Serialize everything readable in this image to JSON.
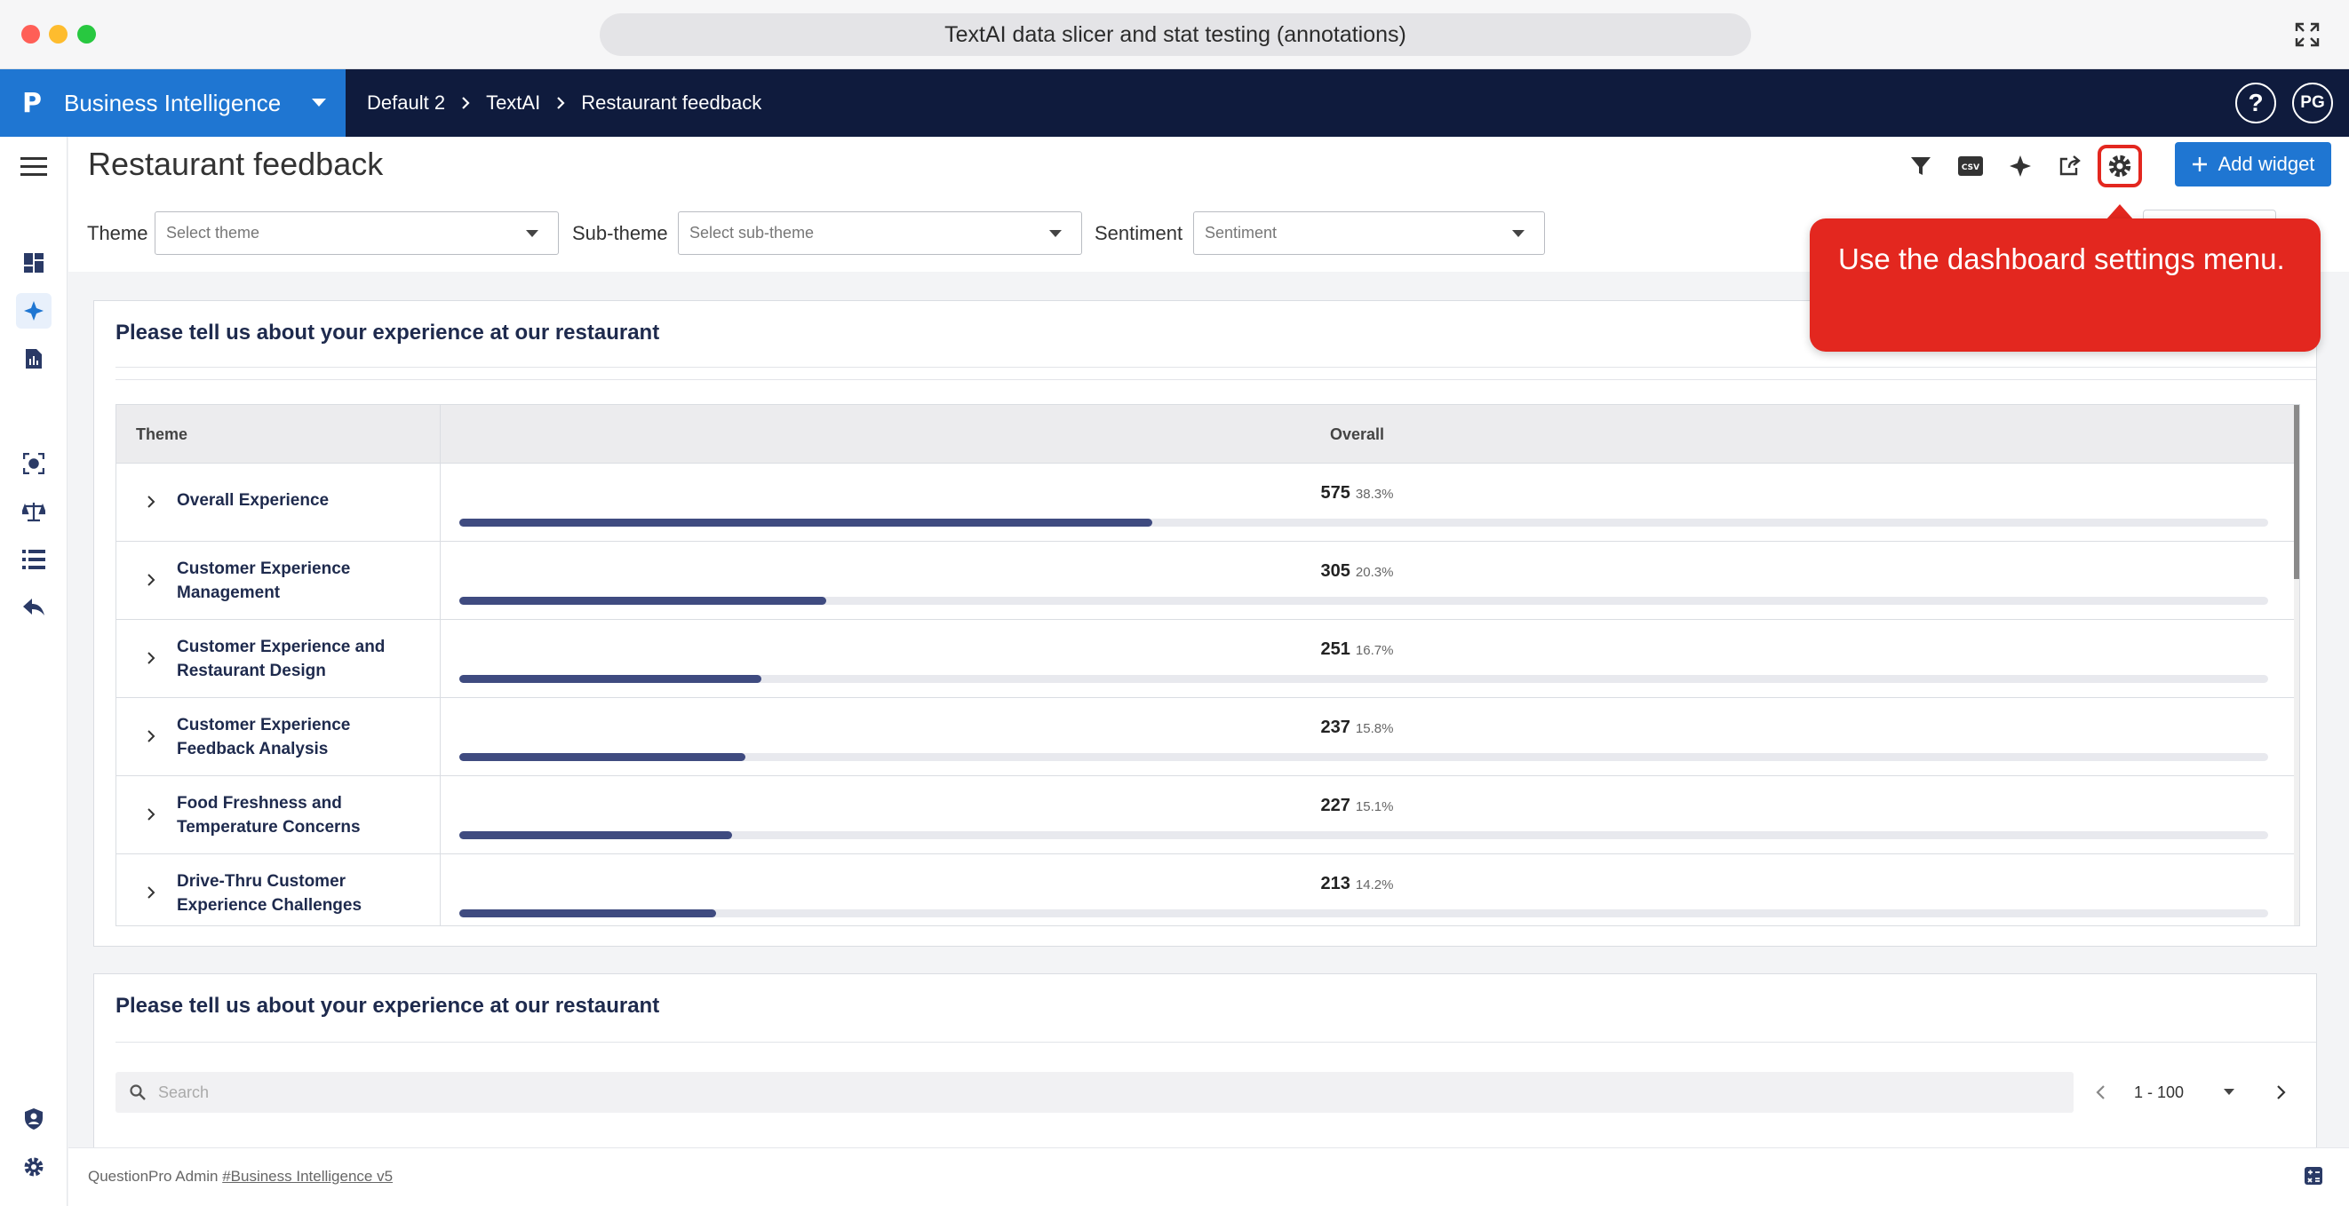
{
  "window": {
    "title": "TextAI data slicer and stat testing (annotations)"
  },
  "header": {
    "brand": "Business Intelligence",
    "breadcrumbs": [
      "Default 2",
      "TextAI",
      "Restaurant feedback"
    ],
    "help_label": "?",
    "avatar_initials": "PG"
  },
  "page": {
    "title": "Restaurant feedback",
    "add_widget_label": "Add widget",
    "csv_label": "CSV"
  },
  "filters": {
    "theme_label": "Theme",
    "theme_placeholder": "Select theme",
    "subtheme_label": "Sub-theme",
    "subtheme_placeholder": "Select sub-theme",
    "sentiment_label": "Sentiment",
    "sentiment_placeholder": "Sentiment"
  },
  "callout": {
    "text": "Use the dashboard settings menu."
  },
  "widget1": {
    "title": "Please tell us about your experience at our restaurant",
    "col_theme": "Theme",
    "col_overall": "Overall",
    "rows": [
      {
        "label_line1": "Overall Experience",
        "label_line2": "",
        "count": "575",
        "pct": "38.3%",
        "fraction": 0.383
      },
      {
        "label_line1": "Customer Experience",
        "label_line2": "Management",
        "count": "305",
        "pct": "20.3%",
        "fraction": 0.203
      },
      {
        "label_line1": "Customer Experience and",
        "label_line2": "Restaurant Design",
        "count": "251",
        "pct": "16.7%",
        "fraction": 0.167
      },
      {
        "label_line1": "Customer Experience",
        "label_line2": "Feedback Analysis",
        "count": "237",
        "pct": "15.8%",
        "fraction": 0.158
      },
      {
        "label_line1": "Food Freshness and",
        "label_line2": "Temperature Concerns",
        "count": "227",
        "pct": "15.1%",
        "fraction": 0.151
      },
      {
        "label_line1": "Drive-Thru Customer",
        "label_line2": "Experience Challenges",
        "count": "213",
        "pct": "14.2%",
        "fraction": 0.142
      }
    ]
  },
  "widget2": {
    "title": "Please tell us about your experience at our restaurant",
    "search_placeholder": "Search",
    "pager_range": "1 - 100"
  },
  "footer": {
    "prefix": "QuestionPro Admin",
    "link": "#Business Intelligence v5"
  },
  "colors": {
    "brand": "#1f76d2",
    "header_bg": "#0f1b3d",
    "callout": "#e3271f",
    "bar": "#3f4b80"
  }
}
